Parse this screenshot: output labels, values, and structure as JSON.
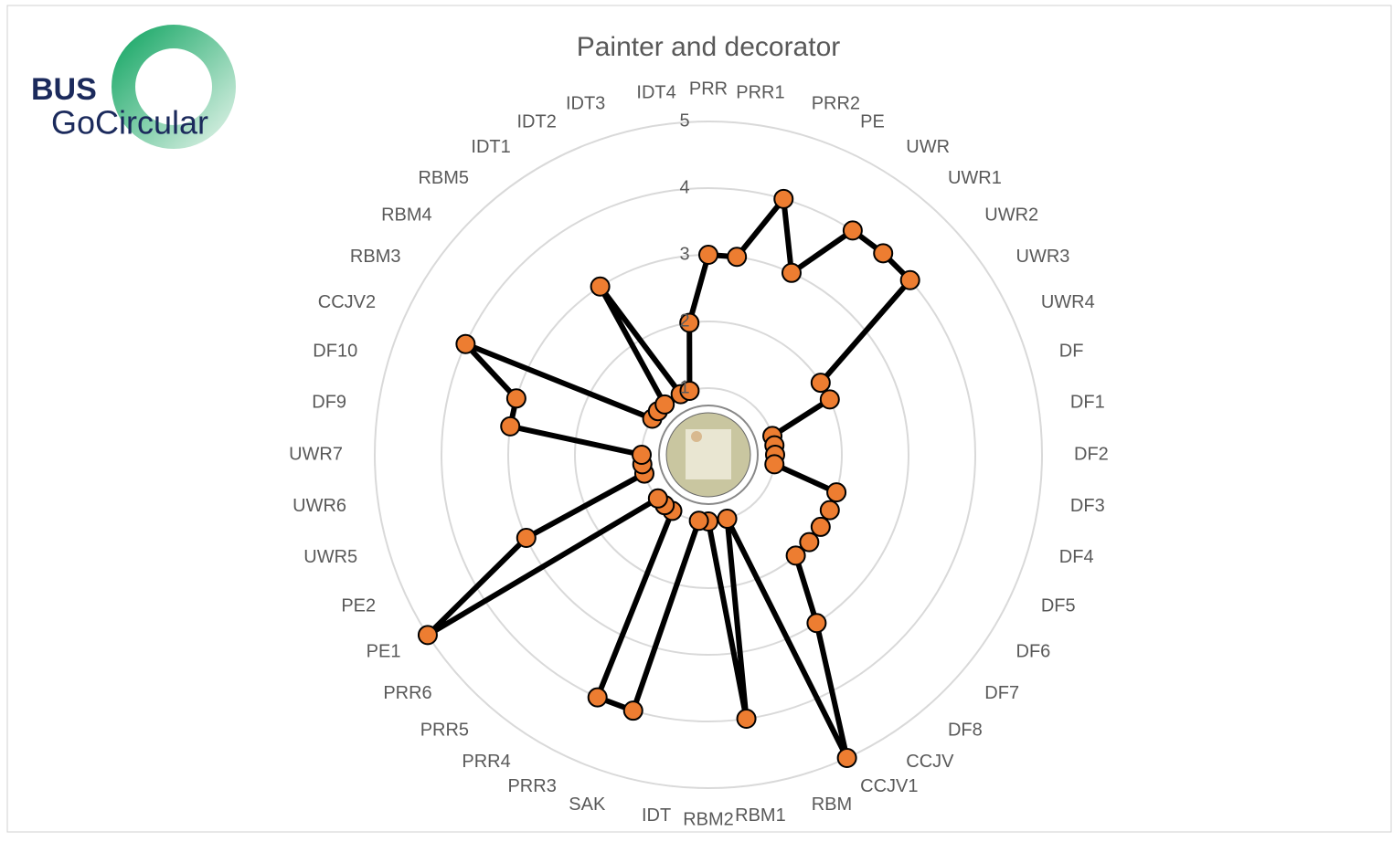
{
  "logo": {
    "line1": "BUS",
    "line2": "GoCircular"
  },
  "chart_data": {
    "type": "radar",
    "title": "Painter and decorator",
    "categories": [
      "PRR",
      "PRR1",
      "PRR2",
      "PE",
      "UWR",
      "UWR1",
      "UWR2",
      "UWR3",
      "UWR4",
      "DF",
      "DF1",
      "DF2",
      "DF3",
      "DF4",
      "DF5",
      "DF6",
      "DF7",
      "DF8",
      "CCJV",
      "CCJV1",
      "RBM",
      "RBM1",
      "RBM2",
      "IDT",
      "SAK",
      "PRR3",
      "PRR4",
      "PRR5",
      "PRR6",
      "PE1",
      "PE2",
      "UWR5",
      "UWR6",
      "UWR7",
      "DF9",
      "DF10",
      "CCJV2",
      "RBM3",
      "RBM4",
      "RBM5",
      "IDT1",
      "IDT2",
      "IDT3",
      "IDT4"
    ],
    "values": [
      3,
      3,
      4,
      3,
      4,
      4,
      4,
      2,
      2,
      1,
      1,
      1,
      1,
      2,
      2,
      2,
      2,
      2,
      3,
      5,
      1,
      4,
      1,
      1,
      4,
      4,
      1,
      1,
      1,
      5,
      3,
      1,
      1,
      1,
      3,
      3,
      4,
      1,
      1,
      1,
      3,
      1,
      1,
      2
    ],
    "color": "#ed7d31",
    "line_color": "#000000",
    "ylim": [
      0,
      5
    ],
    "yticks": [
      1,
      2,
      3,
      4,
      5
    ],
    "grid": true
  }
}
